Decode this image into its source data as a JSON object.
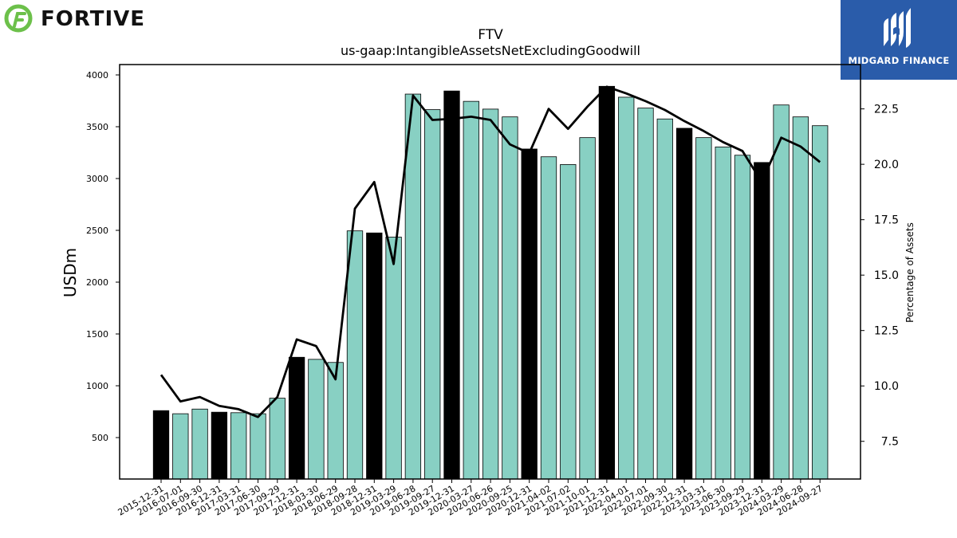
{
  "branding": {
    "left_logo_text": "FORTIVE",
    "right_logo_text": "MIDGARD FINANCE",
    "left_logo_color": "#6cc04a",
    "right_logo_bg": "#2a5caa"
  },
  "chart_data": {
    "type": "bar",
    "title": "FTV",
    "subtitle": "us-gaap:IntangibleAssetsNetExcludingGoodwill",
    "ylabel": "USDm",
    "y2label": "Percentage of Assets",
    "ylim": [
      100,
      4100
    ],
    "y2lim": [
      5.8,
      24.5
    ],
    "yticks": [
      500,
      1000,
      1500,
      2000,
      2500,
      3000,
      3500,
      4000
    ],
    "y2ticks": [
      "7.5",
      "10.0",
      "12.5",
      "15.0",
      "17.5",
      "20.0",
      "22.5"
    ],
    "categories": [
      "2015-12-31",
      "2016-07-01",
      "2016-09-30",
      "2016-12-31",
      "2017-03-31",
      "2017-06-30",
      "2017-09-29",
      "2017-12-31",
      "2018-03-30",
      "2018-06-29",
      "2018-09-28",
      "2018-12-31",
      "2019-03-29",
      "2019-06-28",
      "2019-09-27",
      "2019-12-31",
      "2020-03-27",
      "2020-06-26",
      "2020-09-25",
      "2020-12-31",
      "2021-04-02",
      "2021-07-02",
      "2021-10-01",
      "2021-12-31",
      "2022-04-01",
      "2022-07-01",
      "2022-09-30",
      "2022-12-31",
      "2023-03-31",
      "2023-06-30",
      "2023-09-29",
      "2023-12-31",
      "2024-03-29",
      "2024-06-28",
      "2024-09-27"
    ],
    "series": [
      {
        "kind": "bar",
        "values": [
          760,
          730,
          775,
          745,
          740,
          730,
          880,
          1275,
          1255,
          1225,
          2495,
          2475,
          2435,
          3815,
          3665,
          3845,
          3745,
          3670,
          3595,
          3285,
          3210,
          3135,
          3395,
          3890,
          3785,
          3680,
          3575,
          3485,
          3395,
          3305,
          3225,
          3155,
          3710,
          3595,
          3510
        ],
        "highlight": [
          true,
          false,
          false,
          true,
          false,
          false,
          false,
          true,
          false,
          false,
          false,
          true,
          false,
          false,
          false,
          true,
          false,
          false,
          false,
          true,
          false,
          false,
          false,
          true,
          false,
          false,
          false,
          true,
          false,
          false,
          false,
          true,
          false,
          false,
          false
        ]
      },
      {
        "kind": "line",
        "axis": "right",
        "values": [
          10.5,
          9.3,
          9.5,
          9.1,
          8.95,
          8.6,
          9.5,
          12.1,
          11.8,
          10.3,
          18.0,
          19.2,
          15.5,
          23.1,
          22.0,
          22.05,
          22.15,
          22.0,
          20.9,
          20.5,
          22.5,
          21.6,
          22.6,
          23.5,
          23.2,
          22.85,
          22.45,
          21.95,
          21.5,
          21.0,
          20.6,
          19.2,
          21.2,
          20.8,
          20.1
        ]
      }
    ],
    "colors": {
      "bar": "#88d0c3",
      "highlight_bar": "#000000",
      "bar_edge": "#000000",
      "line": "#000000"
    }
  }
}
